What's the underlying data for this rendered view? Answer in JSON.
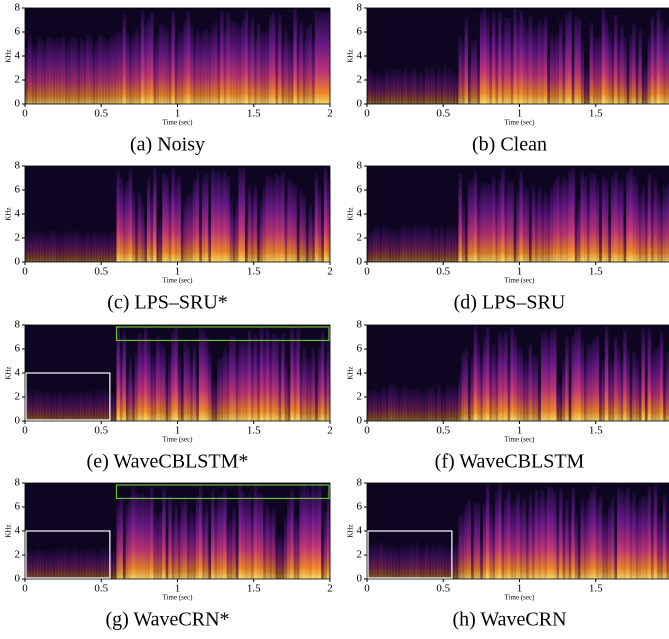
{
  "axes": {
    "ylabel": "KHz",
    "xlabel": "Time (sec)",
    "yticks": [
      0,
      2,
      4,
      6,
      8
    ],
    "xticks": [
      0,
      0.5,
      1,
      1.5,
      2
    ]
  },
  "panels": [
    {
      "caption": "(a) Noisy"
    },
    {
      "caption": "(b) Clean"
    },
    {
      "caption": "(c) LPS–SRU*"
    },
    {
      "caption": "(d) LPS–SRU"
    },
    {
      "caption": "(e) WaveCBLSTM*"
    },
    {
      "caption": "(f) WaveCBLSTM"
    },
    {
      "caption": "(g) WaveCRN*"
    },
    {
      "caption": "(h) WaveCRN"
    }
  ]
}
